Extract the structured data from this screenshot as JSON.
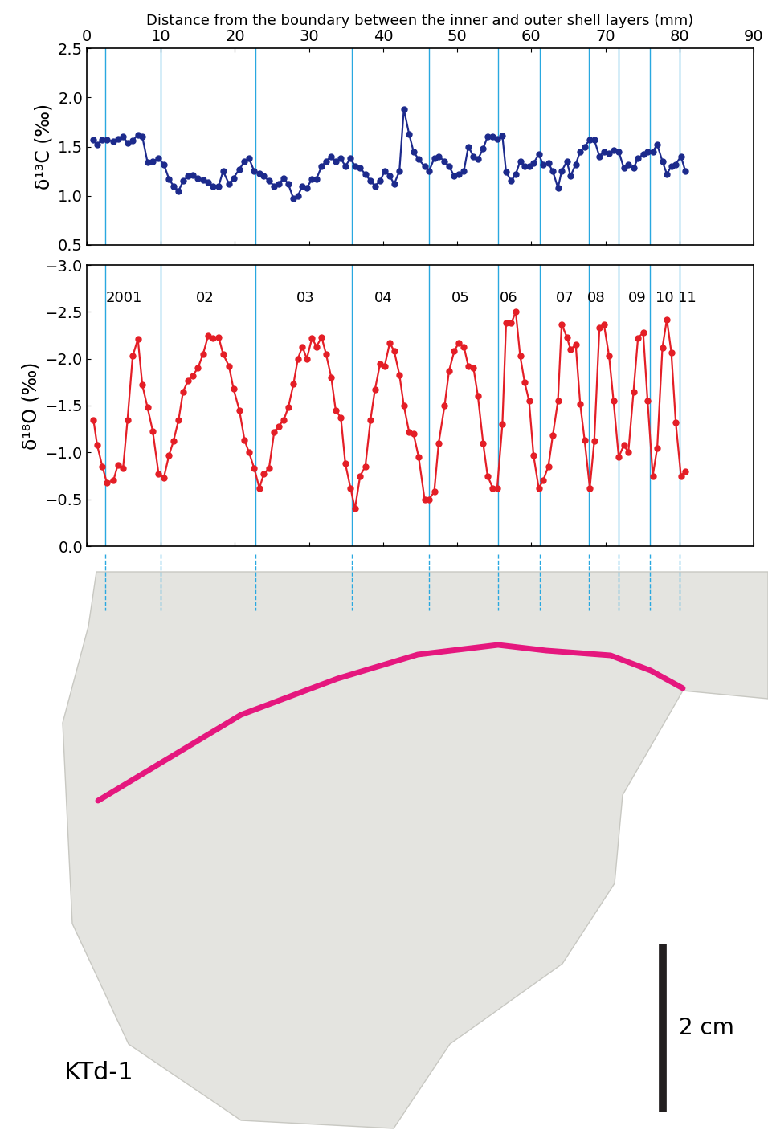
{
  "chart_data": [
    {
      "type": "line",
      "ylabel": "δ¹³C (‰)",
      "xlabel": "Distance from the boundary between the inner and outer shell layers (mm)",
      "xlim": [
        0,
        90
      ],
      "xticks": [
        0,
        10,
        20,
        30,
        40,
        50,
        60,
        70,
        80,
        90
      ],
      "ylim": [
        0.5,
        2.5
      ],
      "yticks": [
        0.5,
        1.0,
        1.5,
        2.0,
        2.5
      ],
      "color": "#1c2a8c",
      "marker": "o",
      "line_style": "solid",
      "boundaries": [
        2.5,
        10.0,
        22.8,
        35.8,
        46.2,
        55.5,
        61.2,
        67.8,
        71.8,
        76.0,
        80.0
      ],
      "x": [
        0.9,
        1.4,
        2.1,
        2.7,
        3.6,
        4.2,
        4.9,
        5.5,
        6.2,
        6.9,
        7.5,
        8.2,
        8.9,
        9.7,
        10.4,
        11.1,
        11.7,
        12.4,
        13.0,
        13.7,
        14.3,
        15.0,
        15.7,
        16.4,
        17.0,
        17.8,
        18.4,
        19.2,
        19.8,
        20.6,
        21.3,
        21.9,
        22.6,
        23.3,
        23.9,
        24.6,
        25.3,
        25.9,
        26.6,
        27.2,
        27.9,
        28.5,
        29.1,
        29.7,
        30.4,
        31.0,
        31.7,
        32.3,
        33.0,
        33.6,
        34.3,
        34.9,
        35.6,
        36.2,
        36.9,
        37.6,
        38.3,
        38.9,
        39.6,
        40.2,
        40.9,
        41.5,
        42.2,
        42.8,
        43.5,
        44.1,
        44.8,
        45.6,
        46.2,
        46.9,
        47.5,
        48.3,
        48.9,
        49.6,
        50.2,
        50.9,
        51.5,
        52.2,
        52.8,
        53.5,
        54.1,
        54.8,
        55.4,
        56.1,
        56.6,
        57.3,
        57.9,
        58.5,
        59.1,
        59.7,
        60.3,
        61.0,
        61.6,
        62.3,
        62.9,
        63.6,
        64.1,
        64.8,
        65.3,
        66.0,
        66.6,
        67.2,
        67.9,
        68.5,
        69.2,
        69.8,
        70.5,
        71.1,
        71.8,
        72.5,
        73.1,
        73.8,
        74.4,
        75.1,
        75.7,
        76.4,
        77.0,
        77.7,
        78.3,
        78.9,
        79.5,
        80.2,
        80.8
      ],
      "values": [
        1.57,
        1.52,
        1.57,
        1.57,
        1.55,
        1.58,
        1.6,
        1.54,
        1.56,
        1.62,
        1.6,
        1.34,
        1.35,
        1.38,
        1.32,
        1.17,
        1.1,
        1.05,
        1.15,
        1.2,
        1.21,
        1.18,
        1.16,
        1.14,
        1.1,
        1.1,
        1.25,
        1.12,
        1.18,
        1.27,
        1.35,
        1.38,
        1.25,
        1.23,
        1.2,
        1.15,
        1.1,
        1.12,
        1.18,
        1.12,
        0.97,
        1.0,
        1.1,
        1.08,
        1.17,
        1.17,
        1.3,
        1.35,
        1.4,
        1.35,
        1.38,
        1.3,
        1.38,
        1.3,
        1.28,
        1.22,
        1.15,
        1.1,
        1.15,
        1.25,
        1.2,
        1.12,
        1.25,
        1.88,
        1.63,
        1.45,
        1.37,
        1.3,
        1.25,
        1.38,
        1.4,
        1.35,
        1.3,
        1.2,
        1.22,
        1.25,
        1.5,
        1.4,
        1.37,
        1.48,
        1.6,
        1.6,
        1.58,
        1.61,
        1.24,
        1.15,
        1.22,
        1.35,
        1.3,
        1.3,
        1.33,
        1.42,
        1.32,
        1.33,
        1.25,
        1.08,
        1.25,
        1.35,
        1.2,
        1.32,
        1.45,
        1.5,
        1.57,
        1.57,
        1.4,
        1.45,
        1.43,
        1.46,
        1.45,
        1.28,
        1.32,
        1.28,
        1.38,
        1.42,
        1.45,
        1.45,
        1.52,
        1.35,
        1.22,
        1.3,
        1.32,
        1.4,
        1.25
      ]
    },
    {
      "type": "line",
      "ylabel": "δ¹⁸O (‰)",
      "tick_labels": "y",
      "xlim": [
        0,
        90
      ],
      "xticks": [
        0,
        10,
        20,
        30,
        40,
        50,
        60,
        70,
        80,
        90
      ],
      "ylim": [
        0.0,
        -3.0
      ],
      "yticks": [
        {
          "value": -3.0,
          "label": "−3.0"
        },
        {
          "value": -2.5,
          "label": "−2.5"
        },
        {
          "value": -2.0,
          "label": "−2.0"
        },
        {
          "value": -1.5,
          "label": "−1.5"
        },
        {
          "value": -1.0,
          "label": "−1.0"
        },
        {
          "value": -0.5,
          "label": "−0.5"
        },
        0.0
      ],
      "color": "#e41e26",
      "marker": "o",
      "line_style": "solid",
      "boundaries": [
        2.5,
        10.0,
        22.8,
        35.8,
        46.2,
        55.5,
        61.2,
        67.8,
        71.8,
        76.0,
        80.0
      ],
      "annotations": [
        {
          "text": "2001",
          "x": 5.0,
          "y": -2.65
        },
        {
          "text": "02",
          "x": 16.0,
          "y": -2.65
        },
        {
          "text": "03",
          "x": 29.5,
          "y": -2.65
        },
        {
          "text": "04",
          "x": 40.0,
          "y": -2.65
        },
        {
          "text": "05",
          "x": 50.5,
          "y": -2.65
        },
        {
          "text": "06",
          "x": 57.0,
          "y": -2.65
        },
        {
          "text": "07",
          "x": 64.5,
          "y": -2.65
        },
        {
          "text": "08",
          "x": 68.8,
          "y": -2.65
        },
        {
          "text": "09",
          "x": 74.3,
          "y": -2.65
        },
        {
          "text": "10",
          "x": 78.0,
          "y": -2.65
        },
        {
          "text": "11",
          "x": 81.0,
          "y": -2.65
        }
      ],
      "x": [
        0.9,
        1.4,
        2.1,
        2.7,
        3.6,
        4.2,
        4.9,
        5.5,
        6.2,
        6.9,
        7.5,
        8.2,
        8.9,
        9.7,
        10.4,
        11.1,
        11.7,
        12.4,
        13.0,
        13.7,
        14.3,
        15.0,
        15.7,
        16.4,
        17.0,
        17.8,
        18.4,
        19.2,
        19.8,
        20.6,
        21.3,
        21.9,
        22.6,
        23.3,
        23.9,
        24.6,
        25.3,
        25.9,
        26.6,
        27.2,
        27.9,
        28.5,
        29.1,
        29.7,
        30.4,
        31.0,
        31.7,
        32.3,
        33.0,
        33.6,
        34.3,
        34.9,
        35.6,
        36.2,
        36.9,
        37.6,
        38.3,
        38.9,
        39.6,
        40.2,
        40.9,
        41.5,
        42.2,
        42.8,
        43.5,
        44.1,
        44.8,
        45.6,
        46.2,
        46.9,
        47.5,
        48.3,
        48.9,
        49.6,
        50.2,
        50.9,
        51.5,
        52.2,
        52.8,
        53.5,
        54.1,
        54.8,
        55.4,
        56.1,
        56.6,
        57.3,
        57.9,
        58.5,
        59.1,
        59.7,
        60.3,
        61.0,
        61.6,
        62.3,
        62.9,
        63.6,
        64.1,
        64.8,
        65.3,
        66.0,
        66.6,
        67.2,
        67.9,
        68.5,
        69.2,
        69.8,
        70.5,
        71.1,
        71.8,
        72.5,
        73.1,
        73.8,
        74.4,
        75.1,
        75.7,
        76.4,
        77.0,
        77.7,
        78.3,
        78.9,
        79.5,
        80.2,
        80.8
      ],
      "values": [
        -1.35,
        -1.08,
        -0.85,
        -0.68,
        -0.7,
        -0.87,
        -0.83,
        -1.35,
        -2.03,
        -2.21,
        -1.72,
        -1.48,
        -1.23,
        -0.77,
        -0.73,
        -0.97,
        -1.12,
        -1.35,
        -1.65,
        -1.77,
        -1.82,
        -1.9,
        -2.05,
        -2.25,
        -2.22,
        -2.23,
        -2.05,
        -1.92,
        -1.68,
        -1.45,
        -1.13,
        -1.0,
        -0.83,
        -0.62,
        -0.77,
        -0.83,
        -1.22,
        -1.28,
        -1.35,
        -1.48,
        -1.73,
        -2.0,
        -2.13,
        -2.0,
        -2.22,
        -2.13,
        -2.23,
        -2.05,
        -1.8,
        -1.45,
        -1.37,
        -0.88,
        -0.62,
        -0.4,
        -0.75,
        -0.85,
        -1.35,
        -1.67,
        -1.95,
        -1.92,
        -2.17,
        -2.08,
        -1.83,
        -1.5,
        -1.22,
        -1.2,
        -0.95,
        -0.5,
        -0.5,
        -0.58,
        -1.1,
        -1.5,
        -1.87,
        -2.08,
        -2.17,
        -2.13,
        -1.92,
        -1.9,
        -1.6,
        -1.1,
        -0.75,
        -0.62,
        -0.62,
        -1.3,
        -2.38,
        -2.38,
        -2.5,
        -2.03,
        -1.75,
        -1.55,
        -0.97,
        -0.62,
        -0.7,
        -0.85,
        -1.18,
        -1.55,
        -2.37,
        -2.23,
        -2.1,
        -2.15,
        -1.52,
        -1.13,
        -0.62,
        -1.12,
        -2.33,
        -2.37,
        -2.03,
        -1.55,
        -0.95,
        -1.08,
        -1.0,
        -1.65,
        -2.22,
        -2.28,
        -1.55,
        -0.75,
        -1.05,
        -2.12,
        -2.42,
        -2.07,
        -1.32,
        -0.75,
        -0.8
      ]
    }
  ],
  "image": {
    "label": "KTd-1",
    "scale_bar": "2 cm"
  }
}
